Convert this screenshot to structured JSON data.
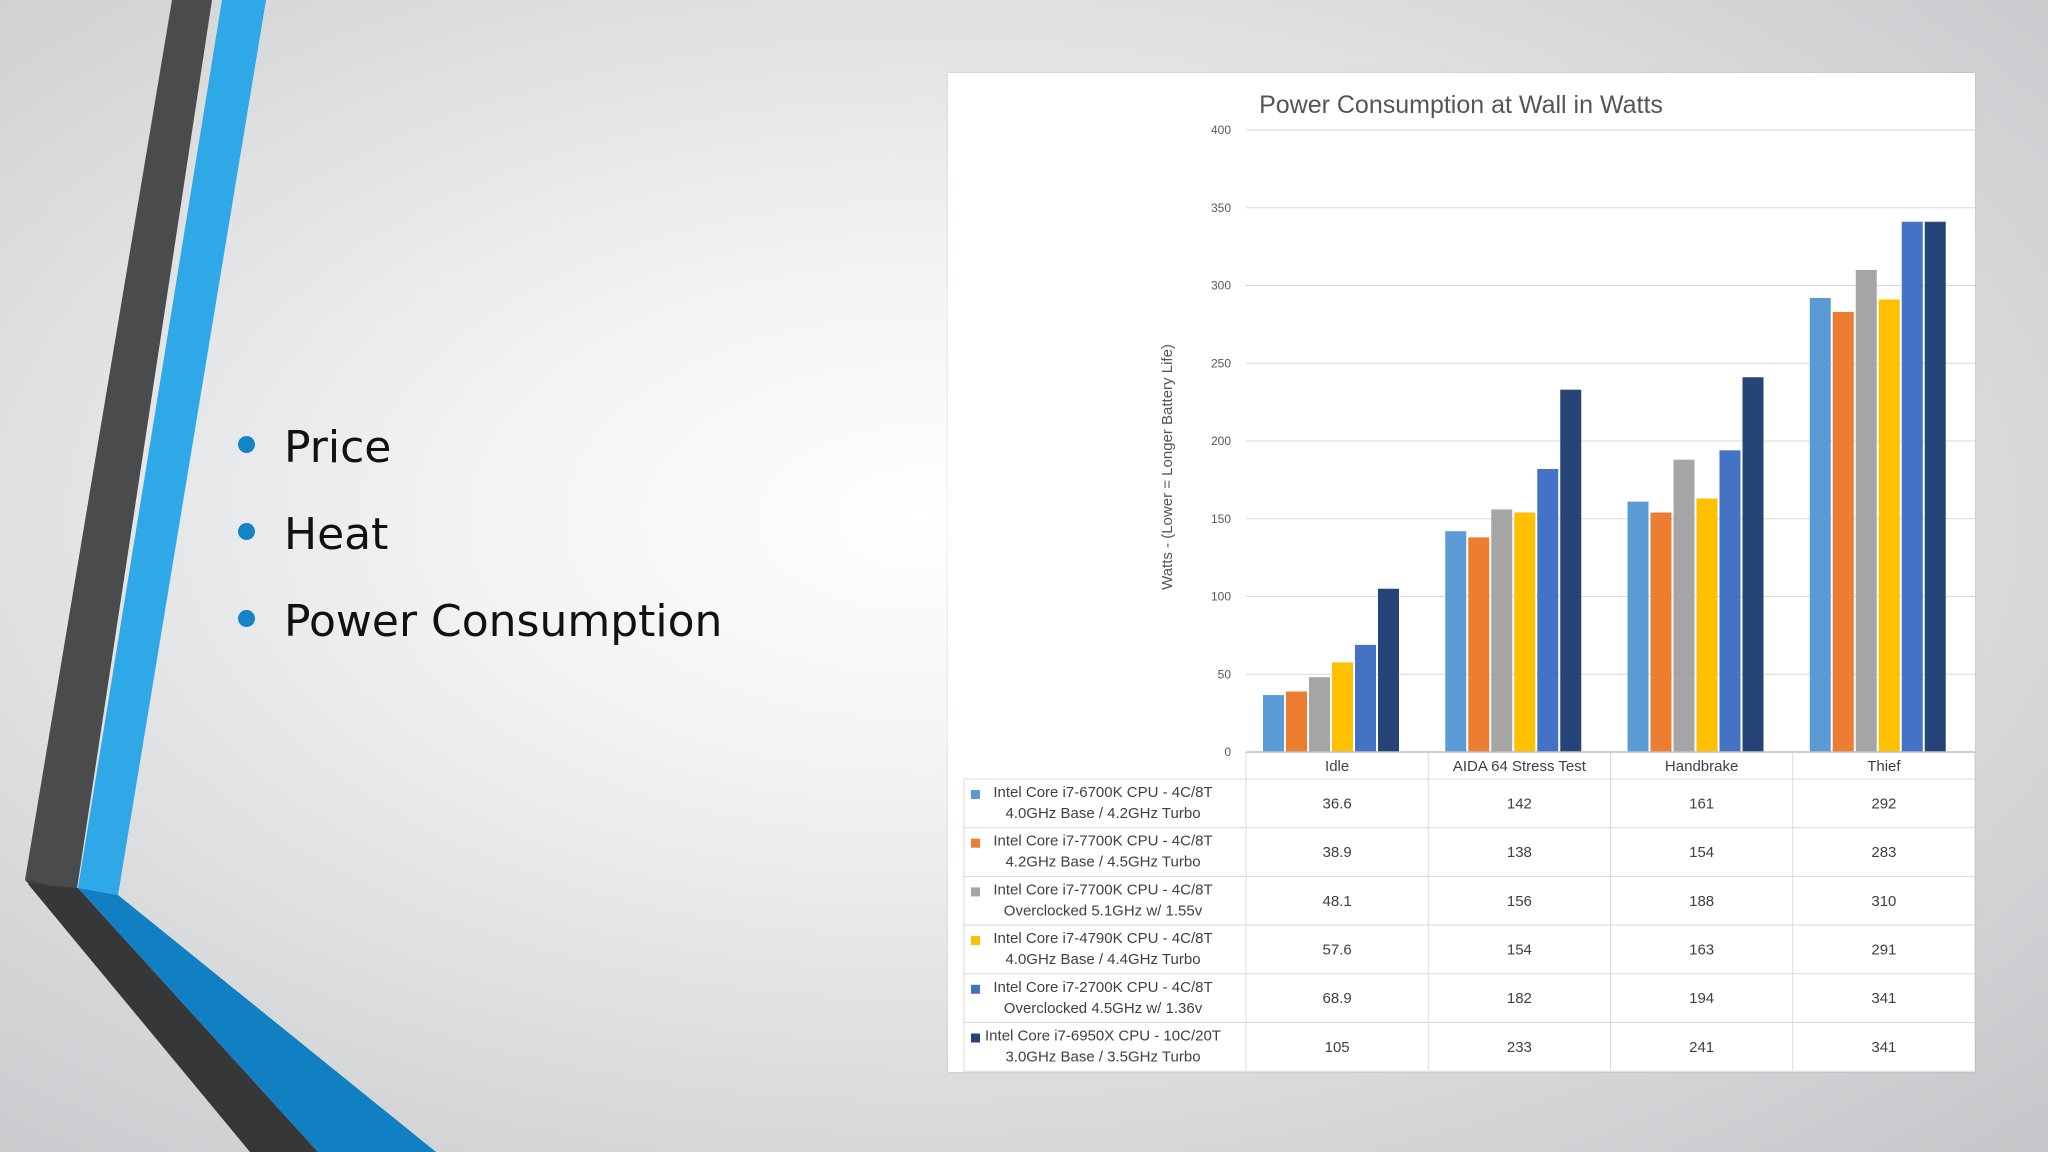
{
  "slide": {
    "bullets": [
      {
        "text": "Price"
      },
      {
        "text": "Heat"
      },
      {
        "text": "Power Consumption"
      }
    ],
    "colors": {
      "bullet": "#1484c6",
      "stripe_blue": "#2ea8e6",
      "stripe_dark": "#4a4b4d",
      "stripe_shadow": "#333333",
      "bottom_blue": "#1180c2"
    }
  },
  "chart_data": {
    "type": "bar",
    "title": "Power Consumption at Wall in Watts",
    "ylabel": "Watts - (Lower = Longer Battery Life)",
    "xlabel": "",
    "ylim": [
      0,
      400
    ],
    "yticks": [
      0,
      50,
      100,
      150,
      200,
      250,
      300,
      350,
      400
    ],
    "grid": true,
    "legend": "data-table-below",
    "categories": [
      "Idle",
      "AIDA 64 Stress Test",
      "Handbrake",
      "Thief"
    ],
    "series": [
      {
        "name_line1": "Intel Core i7-6700K CPU - 4C/8T",
        "name_line2": "4.0GHz Base / 4.2GHz Turbo",
        "color": "#5b9bd5",
        "values": [
          36.6,
          142,
          161,
          292
        ]
      },
      {
        "name_line1": "Intel Core i7-7700K CPU - 4C/8T",
        "name_line2": "4.2GHz Base / 4.5GHz Turbo",
        "color": "#ed7d31",
        "values": [
          38.9,
          138,
          154,
          283
        ]
      },
      {
        "name_line1": "Intel Core i7-7700K CPU - 4C/8T",
        "name_line2": "Overclocked 5.1GHz w/ 1.55v",
        "color": "#a5a5a5",
        "values": [
          48.1,
          156,
          188,
          310
        ]
      },
      {
        "name_line1": "Intel Core i7-4790K CPU - 4C/8T",
        "name_line2": "4.0GHz Base / 4.4GHz Turbo",
        "color": "#ffc000",
        "values": [
          57.6,
          154,
          163,
          291
        ]
      },
      {
        "name_line1": "Intel Core i7-2700K CPU - 4C/8T",
        "name_line2": "Overclocked 4.5GHz w/ 1.36v",
        "color": "#4472c4",
        "values": [
          68.9,
          182,
          194,
          341
        ]
      },
      {
        "name_line1": "Intel Core i7-6950X CPU - 10C/20T",
        "name_line2": "3.0GHz Base / 3.5GHz Turbo",
        "color": "#264478",
        "values": [
          105,
          233,
          241,
          341
        ]
      }
    ]
  }
}
